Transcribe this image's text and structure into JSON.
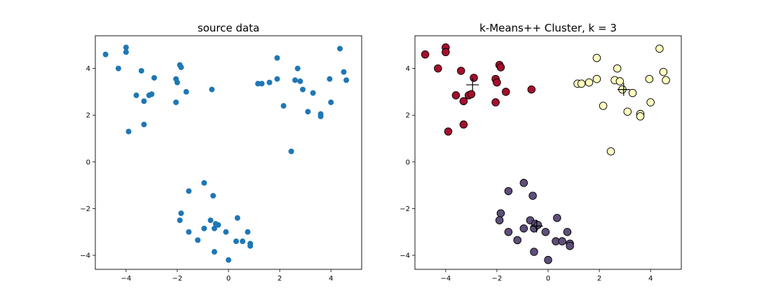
{
  "chart_data": [
    {
      "type": "scatter",
      "title": "source data",
      "xlabel": "",
      "ylabel": "",
      "xlim": [
        -5.2,
        5.2
      ],
      "ylim": [
        -4.6,
        5.4
      ],
      "xticks": [
        -4,
        -2,
        0,
        2,
        4
      ],
      "yticks": [
        -4,
        -2,
        0,
        2,
        4
      ],
      "tick_labels_x": [
        "−4",
        "−2",
        "0",
        "2",
        "4"
      ],
      "tick_labels_y": [
        "−4",
        "−2",
        "0",
        "2",
        "4"
      ],
      "grid": false,
      "point_color": "#1f77b4",
      "points": [
        [
          -4.8,
          4.6
        ],
        [
          -4.3,
          4.0
        ],
        [
          -4.0,
          4.9
        ],
        [
          -4.0,
          4.7
        ],
        [
          -3.9,
          1.3
        ],
        [
          -3.6,
          2.85
        ],
        [
          -3.4,
          3.9
        ],
        [
          -3.3,
          2.6
        ],
        [
          -3.3,
          1.6
        ],
        [
          -3.1,
          2.85
        ],
        [
          -3.0,
          2.9
        ],
        [
          -2.9,
          3.6
        ],
        [
          -2.05,
          3.55
        ],
        [
          -2.0,
          3.4
        ],
        [
          -2.05,
          2.55
        ],
        [
          -1.9,
          4.15
        ],
        [
          -1.85,
          4.05
        ],
        [
          -1.65,
          3.0
        ],
        [
          -0.65,
          3.1
        ],
        [
          1.15,
          3.35
        ],
        [
          1.3,
          3.35
        ],
        [
          1.6,
          3.4
        ],
        [
          1.9,
          3.55
        ],
        [
          1.9,
          4.45
        ],
        [
          2.15,
          2.4
        ],
        [
          2.45,
          0.45
        ],
        [
          2.7,
          4.0
        ],
        [
          2.6,
          3.5
        ],
        [
          2.8,
          3.45
        ],
        [
          2.9,
          3.1
        ],
        [
          3.1,
          2.15
        ],
        [
          3.3,
          2.95
        ],
        [
          3.6,
          2.05
        ],
        [
          3.6,
          1.95
        ],
        [
          3.95,
          3.55
        ],
        [
          4.0,
          2.55
        ],
        [
          4.5,
          3.85
        ],
        [
          4.6,
          3.5
        ],
        [
          4.35,
          4.85
        ],
        [
          -1.55,
          -1.25
        ],
        [
          -0.95,
          -0.9
        ],
        [
          -0.6,
          -1.45
        ],
        [
          -1.85,
          -2.2
        ],
        [
          -1.9,
          -2.5
        ],
        [
          -1.55,
          -3.0
        ],
        [
          -1.2,
          -3.35
        ],
        [
          -0.95,
          -2.85
        ],
        [
          -0.7,
          -2.5
        ],
        [
          -0.5,
          -2.65
        ],
        [
          -0.55,
          -2.85
        ],
        [
          -0.4,
          -2.7
        ],
        [
          -0.55,
          -3.85
        ],
        [
          -0.1,
          -3.0
        ],
        [
          0.0,
          -4.2
        ],
        [
          0.35,
          -2.4
        ],
        [
          0.3,
          -3.4
        ],
        [
          0.55,
          -3.4
        ],
        [
          0.75,
          -3.0
        ],
        [
          0.85,
          -3.5
        ],
        [
          0.85,
          -3.6
        ]
      ]
    },
    {
      "type": "scatter",
      "title": "k-Means++ Cluster, k = 3",
      "xlabel": "",
      "ylabel": "",
      "xlim": [
        -5.2,
        5.2
      ],
      "ylim": [
        -4.6,
        5.4
      ],
      "xticks": [
        -4,
        -2,
        0,
        2,
        4
      ],
      "yticks": [
        -4,
        -2,
        0,
        2,
        4
      ],
      "tick_labels_x": [
        "−4",
        "−2",
        "0",
        "2",
        "4"
      ],
      "tick_labels_y": [
        "−4",
        "−2",
        "0",
        "2",
        "4"
      ],
      "grid": false,
      "series": [
        {
          "color": "#a50f2c",
          "points": [
            [
              -4.8,
              4.6
            ],
            [
              -4.3,
              4.0
            ],
            [
              -4.0,
              4.9
            ],
            [
              -4.0,
              4.7
            ],
            [
              -3.9,
              1.3
            ],
            [
              -3.6,
              2.85
            ],
            [
              -3.4,
              3.9
            ],
            [
              -3.3,
              2.6
            ],
            [
              -3.3,
              1.6
            ],
            [
              -3.1,
              2.85
            ],
            [
              -3.0,
              2.9
            ],
            [
              -2.9,
              3.6
            ],
            [
              -2.05,
              3.55
            ],
            [
              -2.0,
              3.4
            ],
            [
              -2.05,
              2.55
            ],
            [
              -1.9,
              4.15
            ],
            [
              -1.85,
              4.05
            ],
            [
              -1.65,
              3.0
            ],
            [
              -0.65,
              3.1
            ]
          ]
        },
        {
          "color": "#ffffbf",
          "points": [
            [
              1.15,
              3.35
            ],
            [
              1.3,
              3.35
            ],
            [
              1.6,
              3.4
            ],
            [
              1.9,
              3.55
            ],
            [
              1.9,
              4.45
            ],
            [
              2.15,
              2.4
            ],
            [
              2.45,
              0.45
            ],
            [
              2.7,
              4.0
            ],
            [
              2.6,
              3.5
            ],
            [
              2.8,
              3.45
            ],
            [
              2.9,
              3.1
            ],
            [
              3.1,
              2.15
            ],
            [
              3.3,
              2.95
            ],
            [
              3.6,
              2.05
            ],
            [
              3.6,
              1.95
            ],
            [
              3.95,
              3.55
            ],
            [
              4.0,
              2.55
            ],
            [
              4.5,
              3.85
            ],
            [
              4.6,
              3.5
            ],
            [
              4.35,
              4.85
            ]
          ]
        },
        {
          "color": "#5e4f7a",
          "points": [
            [
              -1.55,
              -1.25
            ],
            [
              -0.95,
              -0.9
            ],
            [
              -0.6,
              -1.45
            ],
            [
              -1.85,
              -2.2
            ],
            [
              -1.9,
              -2.5
            ],
            [
              -1.55,
              -3.0
            ],
            [
              -1.2,
              -3.35
            ],
            [
              -0.95,
              -2.85
            ],
            [
              -0.7,
              -2.5
            ],
            [
              -0.5,
              -2.65
            ],
            [
              -0.55,
              -2.85
            ],
            [
              -0.4,
              -2.7
            ],
            [
              -0.55,
              -3.85
            ],
            [
              -0.1,
              -3.0
            ],
            [
              0.0,
              -4.2
            ],
            [
              0.35,
              -2.4
            ],
            [
              0.3,
              -3.4
            ],
            [
              0.55,
              -3.4
            ],
            [
              0.75,
              -3.0
            ],
            [
              0.85,
              -3.5
            ],
            [
              0.85,
              -3.6
            ]
          ]
        }
      ],
      "centroids": [
        [
          -2.95,
          3.3
        ],
        [
          2.95,
          3.1
        ],
        [
          -0.45,
          -2.75
        ]
      ]
    }
  ]
}
